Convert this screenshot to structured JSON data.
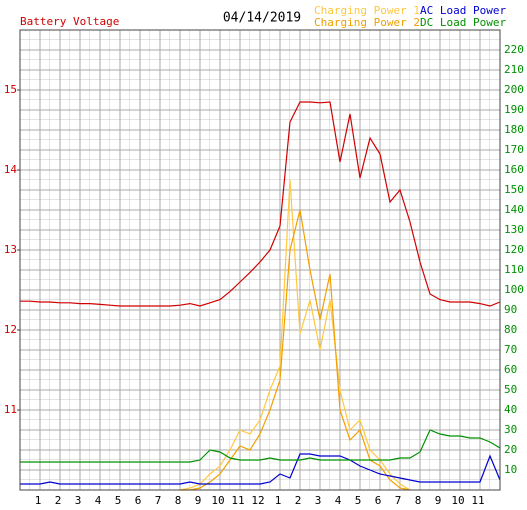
{
  "chart_data": {
    "type": "line",
    "subtitle": "04/14/2019",
    "x": [
      0,
      0.5,
      1,
      1.5,
      2,
      2.5,
      3,
      3.5,
      4,
      4.5,
      5,
      5.5,
      6,
      6.5,
      7,
      7.5,
      8,
      8.5,
      9,
      9.5,
      10,
      10.5,
      11,
      11.5,
      12,
      12.5,
      13,
      13.5,
      14,
      14.5,
      15,
      15.5,
      16,
      16.5,
      17,
      17.5,
      18,
      18.5,
      19,
      19.5,
      20,
      20.5,
      21,
      21.5,
      22,
      22.5,
      23,
      23.5,
      24
    ],
    "xlim": [
      0,
      24
    ],
    "xticks": [
      1,
      2,
      3,
      4,
      5,
      6,
      7,
      8,
      9,
      10,
      11,
      12,
      {
        "value": 13,
        "label": "1"
      },
      {
        "value": 14,
        "label": "2"
      },
      {
        "value": 15,
        "label": "3"
      },
      {
        "value": 16,
        "label": "4"
      },
      {
        "value": 17,
        "label": "5"
      },
      {
        "value": 18,
        "label": "6"
      },
      {
        "value": 19,
        "label": "7"
      },
      {
        "value": 20,
        "label": "8"
      },
      {
        "value": 21,
        "label": "9"
      },
      {
        "value": 22,
        "label": "10"
      },
      {
        "value": 23,
        "label": "11"
      }
    ],
    "ylim": [
      10,
      15.75
    ],
    "yticks": [
      11,
      12,
      13,
      14,
      15
    ],
    "y2lim": [
      0,
      230
    ],
    "y2ticks": [
      10,
      20,
      30,
      40,
      50,
      60,
      70,
      80,
      90,
      100,
      110,
      120,
      130,
      140,
      150,
      160,
      170,
      180,
      190,
      200,
      210,
      220
    ],
    "grid": true,
    "series": [
      {
        "name": "Battery Voltage",
        "color": "#d00000",
        "axis": "y",
        "values": [
          12.36,
          12.36,
          12.35,
          12.35,
          12.34,
          12.34,
          12.33,
          12.33,
          12.32,
          12.31,
          12.3,
          12.3,
          12.3,
          12.3,
          12.3,
          12.3,
          12.31,
          12.33,
          12.3,
          12.34,
          12.38,
          12.48,
          12.6,
          12.72,
          12.85,
          13.0,
          13.3,
          14.6,
          14.85,
          14.85,
          14.84,
          14.85,
          14.1,
          14.7,
          13.9,
          14.4,
          14.2,
          13.6,
          13.75,
          13.35,
          12.85,
          12.45,
          12.38,
          12.35,
          12.35,
          12.35,
          12.33,
          12.3,
          12.35
        ]
      },
      {
        "name": "Charging Power 1",
        "color": "#ffc840",
        "axis": "y2",
        "values": [
          null,
          null,
          null,
          null,
          null,
          null,
          null,
          null,
          null,
          null,
          null,
          null,
          null,
          null,
          null,
          null,
          0,
          1,
          3,
          8,
          12,
          20,
          30,
          28,
          35,
          50,
          62,
          155,
          78,
          95,
          70,
          95,
          50,
          30,
          35,
          20,
          15,
          8,
          3,
          0,
          null,
          null,
          null,
          null,
          null,
          null,
          null,
          null,
          null
        ]
      },
      {
        "name": "Charging Power 2",
        "color": "#f0a000",
        "axis": "y2",
        "values": [
          null,
          null,
          null,
          null,
          null,
          null,
          null,
          null,
          null,
          null,
          null,
          null,
          null,
          null,
          null,
          null,
          0,
          0,
          1,
          4,
          8,
          15,
          22,
          20,
          28,
          40,
          55,
          120,
          140,
          110,
          85,
          108,
          40,
          25,
          30,
          15,
          12,
          5,
          1,
          0,
          null,
          null,
          null,
          null,
          null,
          null,
          null,
          null,
          null
        ]
      },
      {
        "name": "AC Load Power",
        "color": "#0000d0",
        "axis": "y2",
        "values": [
          3,
          3,
          3,
          4,
          3,
          3,
          3,
          3,
          3,
          3,
          3,
          3,
          3,
          3,
          3,
          3,
          3,
          4,
          3,
          3,
          3,
          3,
          3,
          3,
          3,
          4,
          8,
          6,
          18,
          18,
          17,
          17,
          17,
          15,
          12,
          10,
          8,
          7,
          6,
          5,
          4,
          4,
          4,
          4,
          4,
          4,
          4,
          17,
          5
        ]
      },
      {
        "name": "DC Load Power",
        "color": "#009000",
        "axis": "y2",
        "values": [
          14,
          14,
          14,
          14,
          14,
          14,
          14,
          14,
          14,
          14,
          14,
          14,
          14,
          14,
          14,
          14,
          14,
          14,
          15,
          20,
          19,
          16,
          15,
          15,
          15,
          16,
          15,
          15,
          15,
          16,
          15,
          15,
          15,
          15,
          15,
          15,
          15,
          15,
          16,
          16,
          19,
          30,
          28,
          27,
          27,
          26,
          26,
          24,
          21
        ]
      }
    ]
  }
}
